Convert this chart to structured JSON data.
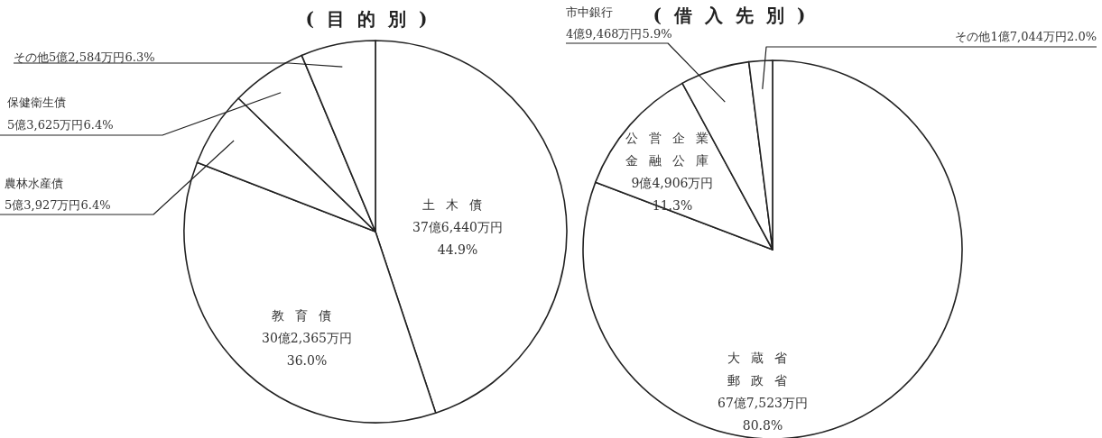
{
  "chart_data": [
    {
      "type": "pie",
      "title": "(目的別)",
      "categories": [
        "土木債",
        "教育債",
        "農林水産債",
        "保健衛生債",
        "その他"
      ],
      "values": [
        44.9,
        36.0,
        6.4,
        6.4,
        6.3
      ],
      "value_labels": [
        "37億6,440万円\n44.9%",
        "30億2,365万円\n36.0%",
        "5億3,927万円6.4%",
        "5億3,625万円6.4%",
        "5億2,584万円6.3%"
      ],
      "colors": [
        "#ffffff",
        "#ffffff",
        "#ffffff",
        "#ffffff",
        "#ffffff"
      ]
    },
    {
      "type": "pie",
      "title": "(借入先別)",
      "categories": [
        "大蔵省郵政省",
        "公営企業金融公庫",
        "市中銀行",
        "その他"
      ],
      "values": [
        80.8,
        11.3,
        5.9,
        2.0
      ],
      "value_labels": [
        "67億7,523万円\n80.8%",
        "9億4,906万円\n11.3%",
        "4億9,468万円5.9%",
        "1億7,044万円2.0%"
      ],
      "colors": [
        "#ffffff",
        "#ffffff",
        "#ffffff",
        "#ffffff"
      ]
    }
  ]
}
